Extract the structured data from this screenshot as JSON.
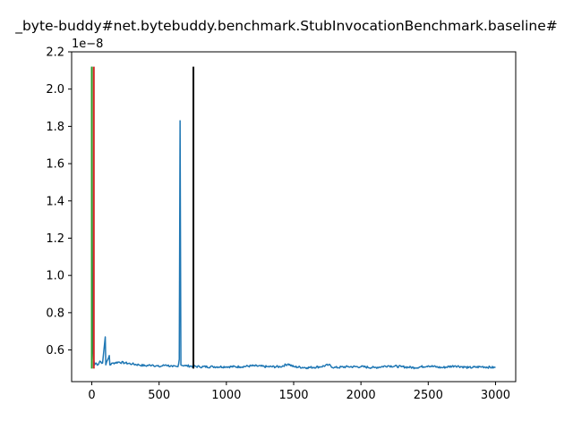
{
  "chart_data": {
    "type": "line",
    "title": "_byte-buddy#net.bytebuddy.benchmark.StubInvocationBenchmark.baseline#",
    "xlabel": "",
    "ylabel": "",
    "y_offset_label": "1e−8",
    "xlim": [
      -150,
      3150
    ],
    "ylim": [
      0.43,
      2.2
    ],
    "grid": false,
    "legend": "none",
    "x_ticks": [
      0,
      500,
      1000,
      1500,
      2000,
      2500,
      3000
    ],
    "x_tick_labels": [
      "0",
      "500",
      "1000",
      "1500",
      "2000",
      "2500",
      "3000"
    ],
    "y_ticks": [
      0.6,
      0.8,
      1.0,
      1.2,
      1.4,
      1.6,
      1.8,
      2.0,
      2.2
    ],
    "y_tick_labels": [
      "0.6",
      "0.8",
      "1.0",
      "1.2",
      "1.4",
      "1.6",
      "1.8",
      "2.0",
      "2.2"
    ],
    "series": [
      {
        "color": "#1f77b4",
        "values_note_points": [
          [
            0,
            2.12
          ],
          [
            3,
            1.2
          ],
          [
            6,
            0.8
          ],
          [
            10,
            0.6
          ],
          [
            14,
            0.55
          ],
          [
            20,
            0.52
          ],
          [
            30,
            0.53
          ],
          [
            45,
            0.52
          ],
          [
            60,
            0.54
          ],
          [
            80,
            0.53
          ],
          [
            100,
            0.67
          ],
          [
            104,
            0.52
          ],
          [
            130,
            0.57
          ],
          [
            134,
            0.52
          ],
          [
            160,
            0.53
          ],
          [
            200,
            0.535
          ],
          [
            250,
            0.53
          ],
          [
            300,
            0.525
          ],
          [
            350,
            0.52
          ],
          [
            400,
            0.515
          ],
          [
            450,
            0.52
          ],
          [
            500,
            0.51
          ],
          [
            550,
            0.52
          ],
          [
            600,
            0.51
          ],
          [
            640,
            0.51
          ],
          [
            650,
            0.55
          ],
          [
            656,
            1.83
          ],
          [
            662,
            0.52
          ],
          [
            700,
            0.515
          ],
          [
            800,
            0.51
          ],
          [
            900,
            0.51
          ],
          [
            1000,
            0.51
          ],
          [
            1100,
            0.51
          ],
          [
            1200,
            0.515
          ],
          [
            1300,
            0.51
          ],
          [
            1400,
            0.51
          ],
          [
            1460,
            0.525
          ],
          [
            1500,
            0.51
          ],
          [
            1600,
            0.505
          ],
          [
            1700,
            0.51
          ],
          [
            1760,
            0.52
          ],
          [
            1800,
            0.505
          ],
          [
            1900,
            0.51
          ],
          [
            2000,
            0.51
          ],
          [
            2100,
            0.505
          ],
          [
            2200,
            0.515
          ],
          [
            2300,
            0.51
          ],
          [
            2400,
            0.505
          ],
          [
            2500,
            0.515
          ],
          [
            2600,
            0.505
          ],
          [
            2700,
            0.515
          ],
          [
            2800,
            0.505
          ],
          [
            2900,
            0.51
          ],
          [
            3000,
            0.505
          ]
        ]
      }
    ],
    "vertical_lines": [
      {
        "x": 0,
        "y_from": 0.5,
        "y_to": 2.12,
        "color": "#2ca02c"
      },
      {
        "x": 15,
        "y_from": 0.5,
        "y_to": 2.12,
        "color": "#d62728"
      },
      {
        "x": 755,
        "y_from": 0.5,
        "y_to": 2.12,
        "color": "#000000"
      }
    ]
  }
}
